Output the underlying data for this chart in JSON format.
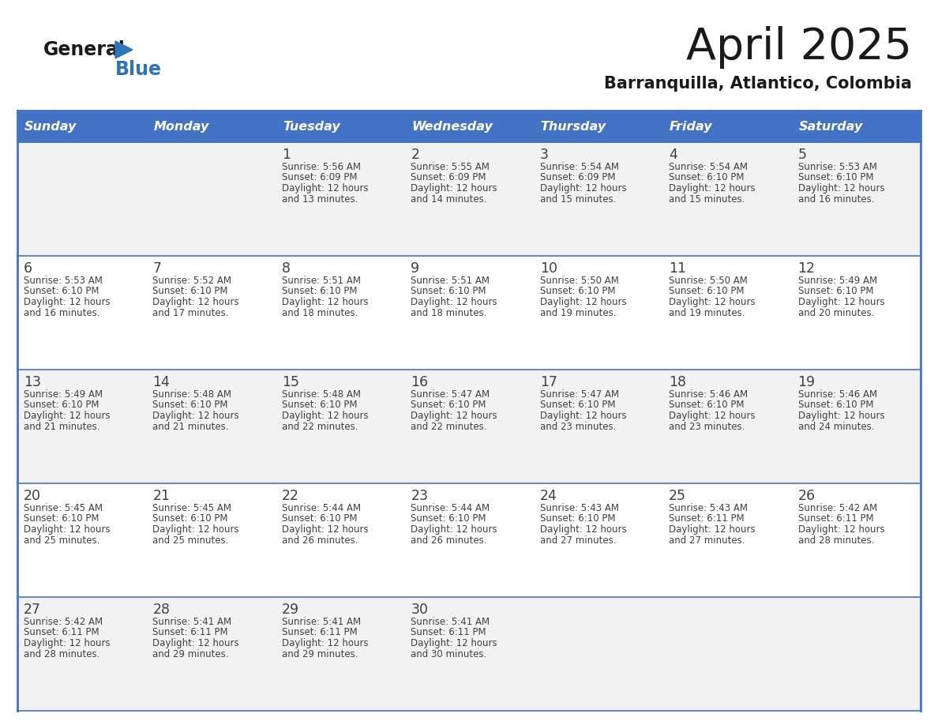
{
  "title": "April 2025",
  "subtitle": "Barranquilla, Atlantico, Colombia",
  "header_bg": "#4472C4",
  "header_text": "#FFFFFF",
  "header_days": [
    "Sunday",
    "Monday",
    "Tuesday",
    "Wednesday",
    "Thursday",
    "Friday",
    "Saturday"
  ],
  "row1_bg": "#F2F2F2",
  "row2_bg": "#FFFFFF",
  "border_color": "#4472C4",
  "text_color": "#404040",
  "title_color": "#1a1a1a",
  "logo_general_color": "#1a1a1a",
  "logo_blue_color": "#2E75B6",
  "calendar": [
    [
      {
        "day": "",
        "sunrise": "",
        "sunset": "",
        "daylight": ""
      },
      {
        "day": "",
        "sunrise": "",
        "sunset": "",
        "daylight": ""
      },
      {
        "day": "1",
        "sunrise": "Sunrise: 5:56 AM",
        "sunset": "Sunset: 6:09 PM",
        "daylight": "Daylight: 12 hours\nand 13 minutes."
      },
      {
        "day": "2",
        "sunrise": "Sunrise: 5:55 AM",
        "sunset": "Sunset: 6:09 PM",
        "daylight": "Daylight: 12 hours\nand 14 minutes."
      },
      {
        "day": "3",
        "sunrise": "Sunrise: 5:54 AM",
        "sunset": "Sunset: 6:09 PM",
        "daylight": "Daylight: 12 hours\nand 15 minutes."
      },
      {
        "day": "4",
        "sunrise": "Sunrise: 5:54 AM",
        "sunset": "Sunset: 6:10 PM",
        "daylight": "Daylight: 12 hours\nand 15 minutes."
      },
      {
        "day": "5",
        "sunrise": "Sunrise: 5:53 AM",
        "sunset": "Sunset: 6:10 PM",
        "daylight": "Daylight: 12 hours\nand 16 minutes."
      }
    ],
    [
      {
        "day": "6",
        "sunrise": "Sunrise: 5:53 AM",
        "sunset": "Sunset: 6:10 PM",
        "daylight": "Daylight: 12 hours\nand 16 minutes."
      },
      {
        "day": "7",
        "sunrise": "Sunrise: 5:52 AM",
        "sunset": "Sunset: 6:10 PM",
        "daylight": "Daylight: 12 hours\nand 17 minutes."
      },
      {
        "day": "8",
        "sunrise": "Sunrise: 5:51 AM",
        "sunset": "Sunset: 6:10 PM",
        "daylight": "Daylight: 12 hours\nand 18 minutes."
      },
      {
        "day": "9",
        "sunrise": "Sunrise: 5:51 AM",
        "sunset": "Sunset: 6:10 PM",
        "daylight": "Daylight: 12 hours\nand 18 minutes."
      },
      {
        "day": "10",
        "sunrise": "Sunrise: 5:50 AM",
        "sunset": "Sunset: 6:10 PM",
        "daylight": "Daylight: 12 hours\nand 19 minutes."
      },
      {
        "day": "11",
        "sunrise": "Sunrise: 5:50 AM",
        "sunset": "Sunset: 6:10 PM",
        "daylight": "Daylight: 12 hours\nand 19 minutes."
      },
      {
        "day": "12",
        "sunrise": "Sunrise: 5:49 AM",
        "sunset": "Sunset: 6:10 PM",
        "daylight": "Daylight: 12 hours\nand 20 minutes."
      }
    ],
    [
      {
        "day": "13",
        "sunrise": "Sunrise: 5:49 AM",
        "sunset": "Sunset: 6:10 PM",
        "daylight": "Daylight: 12 hours\nand 21 minutes."
      },
      {
        "day": "14",
        "sunrise": "Sunrise: 5:48 AM",
        "sunset": "Sunset: 6:10 PM",
        "daylight": "Daylight: 12 hours\nand 21 minutes."
      },
      {
        "day": "15",
        "sunrise": "Sunrise: 5:48 AM",
        "sunset": "Sunset: 6:10 PM",
        "daylight": "Daylight: 12 hours\nand 22 minutes."
      },
      {
        "day": "16",
        "sunrise": "Sunrise: 5:47 AM",
        "sunset": "Sunset: 6:10 PM",
        "daylight": "Daylight: 12 hours\nand 22 minutes."
      },
      {
        "day": "17",
        "sunrise": "Sunrise: 5:47 AM",
        "sunset": "Sunset: 6:10 PM",
        "daylight": "Daylight: 12 hours\nand 23 minutes."
      },
      {
        "day": "18",
        "sunrise": "Sunrise: 5:46 AM",
        "sunset": "Sunset: 6:10 PM",
        "daylight": "Daylight: 12 hours\nand 23 minutes."
      },
      {
        "day": "19",
        "sunrise": "Sunrise: 5:46 AM",
        "sunset": "Sunset: 6:10 PM",
        "daylight": "Daylight: 12 hours\nand 24 minutes."
      }
    ],
    [
      {
        "day": "20",
        "sunrise": "Sunrise: 5:45 AM",
        "sunset": "Sunset: 6:10 PM",
        "daylight": "Daylight: 12 hours\nand 25 minutes."
      },
      {
        "day": "21",
        "sunrise": "Sunrise: 5:45 AM",
        "sunset": "Sunset: 6:10 PM",
        "daylight": "Daylight: 12 hours\nand 25 minutes."
      },
      {
        "day": "22",
        "sunrise": "Sunrise: 5:44 AM",
        "sunset": "Sunset: 6:10 PM",
        "daylight": "Daylight: 12 hours\nand 26 minutes."
      },
      {
        "day": "23",
        "sunrise": "Sunrise: 5:44 AM",
        "sunset": "Sunset: 6:10 PM",
        "daylight": "Daylight: 12 hours\nand 26 minutes."
      },
      {
        "day": "24",
        "sunrise": "Sunrise: 5:43 AM",
        "sunset": "Sunset: 6:10 PM",
        "daylight": "Daylight: 12 hours\nand 27 minutes."
      },
      {
        "day": "25",
        "sunrise": "Sunrise: 5:43 AM",
        "sunset": "Sunset: 6:11 PM",
        "daylight": "Daylight: 12 hours\nand 27 minutes."
      },
      {
        "day": "26",
        "sunrise": "Sunrise: 5:42 AM",
        "sunset": "Sunset: 6:11 PM",
        "daylight": "Daylight: 12 hours\nand 28 minutes."
      }
    ],
    [
      {
        "day": "27",
        "sunrise": "Sunrise: 5:42 AM",
        "sunset": "Sunset: 6:11 PM",
        "daylight": "Daylight: 12 hours\nand 28 minutes."
      },
      {
        "day": "28",
        "sunrise": "Sunrise: 5:41 AM",
        "sunset": "Sunset: 6:11 PM",
        "daylight": "Daylight: 12 hours\nand 29 minutes."
      },
      {
        "day": "29",
        "sunrise": "Sunrise: 5:41 AM",
        "sunset": "Sunset: 6:11 PM",
        "daylight": "Daylight: 12 hours\nand 29 minutes."
      },
      {
        "day": "30",
        "sunrise": "Sunrise: 5:41 AM",
        "sunset": "Sunset: 6:11 PM",
        "daylight": "Daylight: 12 hours\nand 30 minutes."
      },
      {
        "day": "",
        "sunrise": "",
        "sunset": "",
        "daylight": ""
      },
      {
        "day": "",
        "sunrise": "",
        "sunset": "",
        "daylight": ""
      },
      {
        "day": "",
        "sunrise": "",
        "sunset": "",
        "daylight": ""
      }
    ]
  ]
}
